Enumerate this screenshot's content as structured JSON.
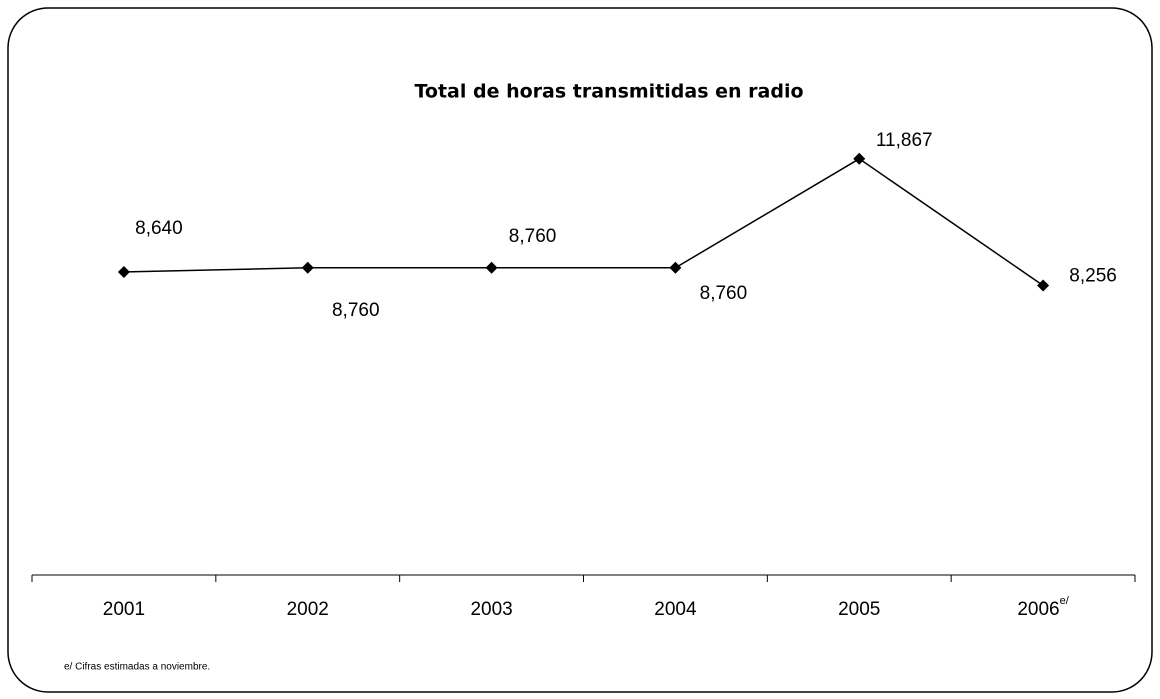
{
  "chart_data": {
    "type": "line",
    "title": "Total de horas transmitidas en radio",
    "categories": [
      "2001",
      "2002",
      "2003",
      "2004",
      "2005",
      "2006"
    ],
    "superscripts": [
      null,
      null,
      null,
      null,
      null,
      "e/"
    ],
    "values": [
      8640,
      8760,
      8760,
      8760,
      11867,
      8256
    ],
    "value_labels": [
      "8,640",
      "8,760",
      "8,760",
      "8,760",
      "11,867",
      "8,256"
    ],
    "color": "#000000",
    "ylim": [
      0,
      14000
    ],
    "footnote": "e/ Cifras estimadas a noviembre."
  }
}
